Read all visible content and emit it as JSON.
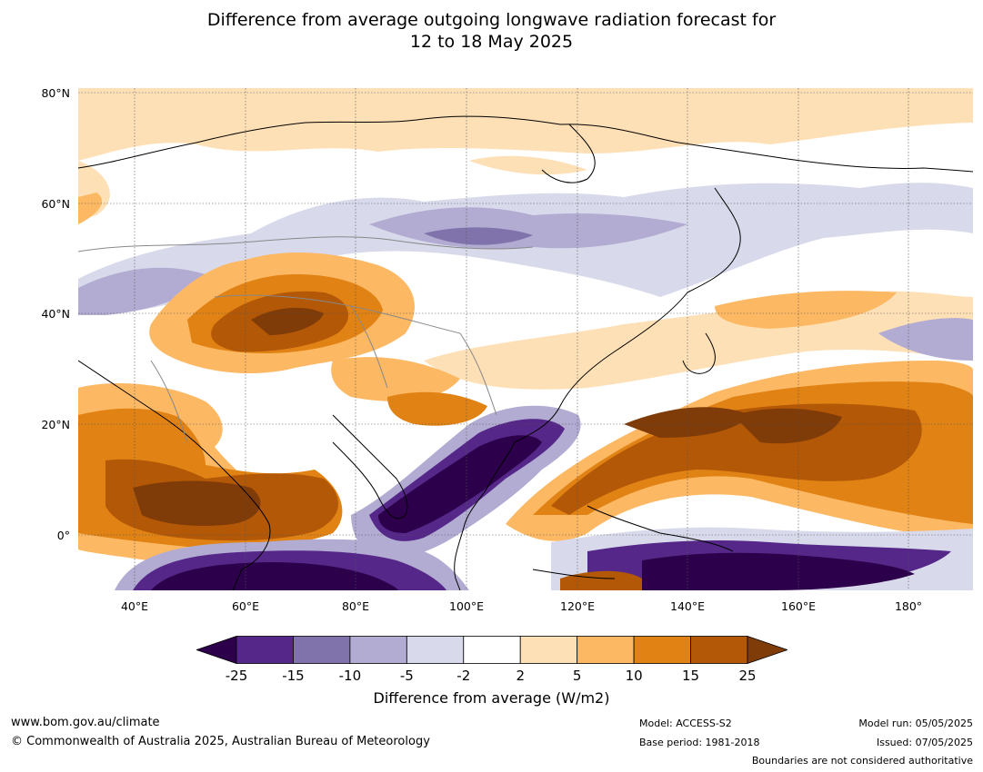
{
  "title_line1": "Difference from average outgoing longwave radiation forecast for",
  "title_line2": "12 to 18 May 2025",
  "lat_labels": [
    "80°N",
    "60°N",
    "40°N",
    "20°N",
    "0°"
  ],
  "lon_labels": [
    "40°E",
    "60°E",
    "80°E",
    "100°E",
    "120°E",
    "140°E",
    "160°E",
    "180°"
  ],
  "colorbar": {
    "ticks": [
      "-25",
      "-15",
      "-10",
      "-5",
      "-2",
      "2",
      "5",
      "10",
      "15",
      "25"
    ],
    "colors": [
      "#2d004b",
      "#542788",
      "#8073ac",
      "#b2abd2",
      "#d8daeb",
      "#ffffff",
      "#fee0b6",
      "#fdb863",
      "#e08214",
      "#b35806",
      "#7f3b08"
    ],
    "title": "Difference from average (W/m2)"
  },
  "footer": {
    "url": "www.bom.gov.au/climate",
    "copyright": "© Commonwealth of Australia 2025, Australian Bureau of Meteorology",
    "model": "Model: ACCESS-S2",
    "base_period": "Base period: 1981-2018",
    "model_run": "Model run: 05/05/2025",
    "issued": "Issued: 07/05/2025",
    "boundaries": "Boundaries are not considered authoritative"
  }
}
